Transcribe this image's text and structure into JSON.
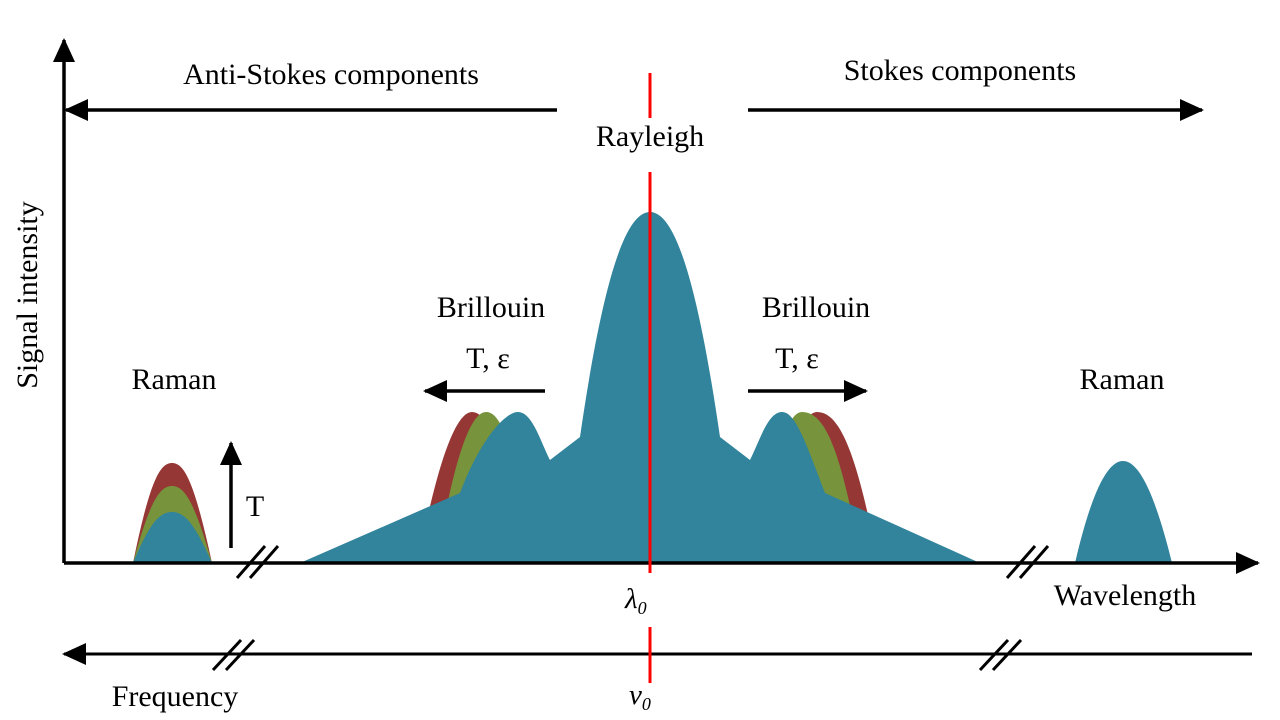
{
  "labels": {
    "anti_stokes": "Anti-Stokes components",
    "stokes": "Stokes components",
    "rayleigh": "Rayleigh",
    "brillouin_left": "Brillouin",
    "brillouin_right": "Brillouin",
    "t_eps_left": "T, ε",
    "t_eps_right": "T, ε",
    "raman_left": "Raman",
    "raman_right": "Raman",
    "t_arrow": "T",
    "signal_intensity": "Signal intensity",
    "wavelength": "Wavelength",
    "frequency": "Frequency",
    "lambda0": "λ",
    "lambda0_sub": "0",
    "nu0": "v",
    "nu0_sub": "0"
  },
  "colors": {
    "teal": "#31849b",
    "green": "#77933c",
    "red": "#953735",
    "center_line": "#ff0000",
    "axes": "#000000"
  }
}
